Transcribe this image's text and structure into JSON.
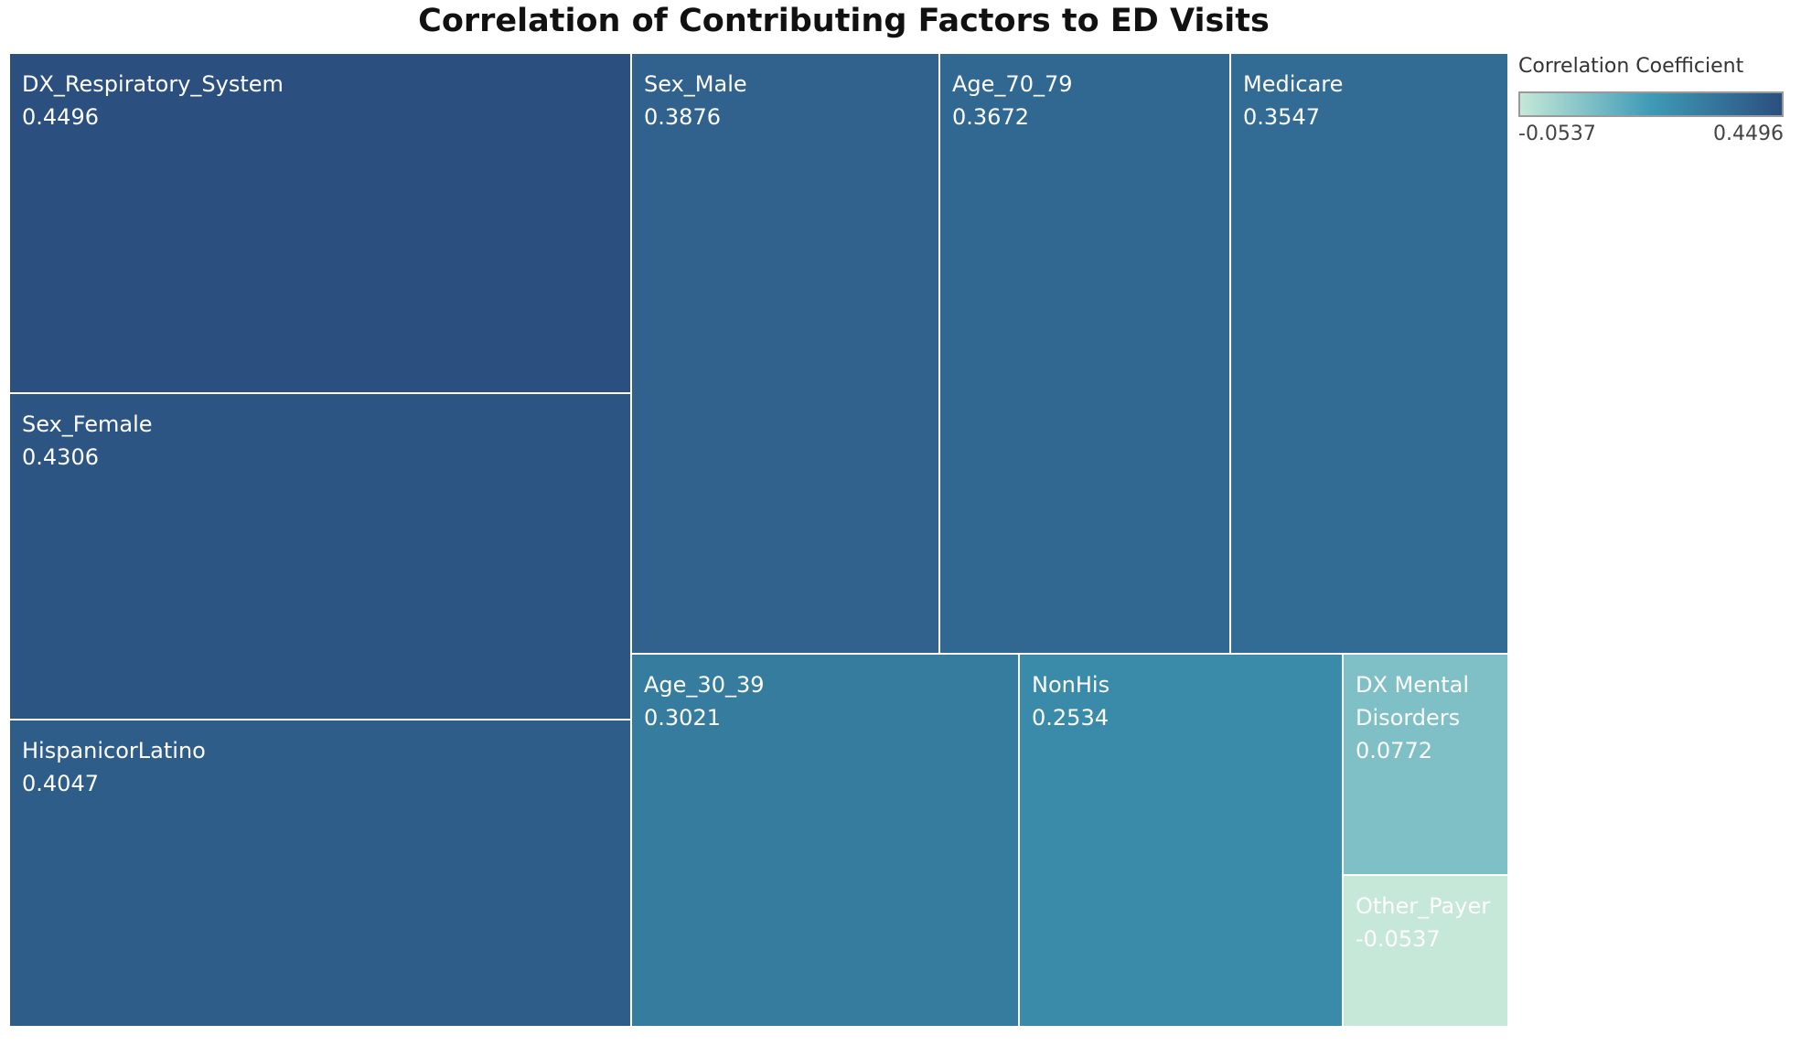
{
  "chart_data": {
    "type": "treemap",
    "title": "Correlation of Contributing Factors to ED Visits",
    "color_legend": {
      "title": "Correlation Coefficient",
      "min": -0.0537,
      "max": 0.4496,
      "min_label": "-0.0537",
      "max_label": "0.4496",
      "colors": [
        "#c5e8d8",
        "#3e9bb6",
        "#2b4f7f"
      ]
    },
    "categories": [
      "DX_Respiratory_System",
      "Sex_Female",
      "HispanicorLatino",
      "Sex_Male",
      "Age_70_79",
      "Medicare",
      "Age_30_39",
      "NonHis",
      "DX Mental Disorders",
      "Other_Payer"
    ],
    "values": [
      0.4496,
      0.4306,
      0.4047,
      0.3876,
      0.3672,
      0.3547,
      0.3021,
      0.2534,
      0.0772,
      -0.0537
    ],
    "value_labels": [
      "0.4496",
      "0.4306",
      "0.4047",
      "0.3876",
      "0.3672",
      "0.3547",
      "0.3021",
      "0.2534",
      "0.0772",
      "-0.0537"
    ]
  }
}
